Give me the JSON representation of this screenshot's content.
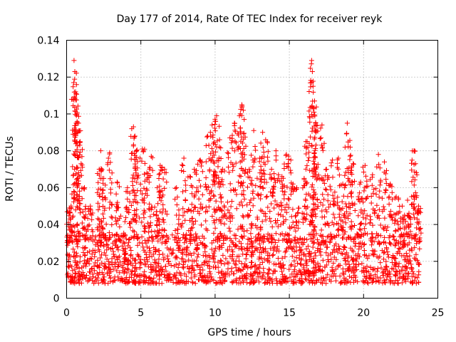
{
  "chart_data": {
    "type": "scatter",
    "title": "Day 177 of 2014, Rate Of TEC Index for receiver reyk",
    "xlabel": "GPS time / hours",
    "ylabel": "ROTI / TECUs",
    "xlim": [
      0,
      25
    ],
    "ylim": [
      0,
      0.14
    ],
    "x_ticks": [
      0,
      5,
      10,
      15,
      20,
      25
    ],
    "x_tick_labels": [
      "0",
      "5",
      "10",
      "15",
      "20",
      "25"
    ],
    "y_ticks": [
      0,
      0.02,
      0.04,
      0.06,
      0.08,
      0.1,
      0.12,
      0.14
    ],
    "y_tick_labels": [
      "0",
      "0.02",
      "0.04",
      "0.06",
      "0.08",
      "0.1",
      "0.12",
      "0.14"
    ],
    "grid": true,
    "marker": "+",
    "color": "#ff0000",
    "series": [
      {
        "name": "ROTI",
        "baseline_band": [
          0.008,
          0.035
        ],
        "spikes": [
          {
            "x": 0.1,
            "y": 0.047
          },
          {
            "x": 0.3,
            "y": 0.05
          },
          {
            "x": 0.5,
            "y": 0.129
          },
          {
            "x": 0.55,
            "y": 0.123
          },
          {
            "x": 0.6,
            "y": 0.112
          },
          {
            "x": 0.7,
            "y": 0.1
          },
          {
            "x": 0.8,
            "y": 0.095
          },
          {
            "x": 0.9,
            "y": 0.085
          },
          {
            "x": 1.2,
            "y": 0.06
          },
          {
            "x": 1.6,
            "y": 0.05
          },
          {
            "x": 2.2,
            "y": 0.07
          },
          {
            "x": 2.3,
            "y": 0.08
          },
          {
            "x": 2.5,
            "y": 0.065
          },
          {
            "x": 2.9,
            "y": 0.079
          },
          {
            "x": 3.4,
            "y": 0.063
          },
          {
            "x": 4.1,
            "y": 0.06
          },
          {
            "x": 4.5,
            "y": 0.093
          },
          {
            "x": 4.6,
            "y": 0.088
          },
          {
            "x": 4.7,
            "y": 0.08
          },
          {
            "x": 5.1,
            "y": 0.081
          },
          {
            "x": 5.4,
            "y": 0.068
          },
          {
            "x": 5.7,
            "y": 0.077
          },
          {
            "x": 6.1,
            "y": 0.06
          },
          {
            "x": 6.3,
            "y": 0.072
          },
          {
            "x": 6.6,
            "y": 0.07
          },
          {
            "x": 7.4,
            "y": 0.06
          },
          {
            "x": 7.9,
            "y": 0.076
          },
          {
            "x": 8.3,
            "y": 0.066
          },
          {
            "x": 8.6,
            "y": 0.07
          },
          {
            "x": 9.0,
            "y": 0.075
          },
          {
            "x": 9.5,
            "y": 0.088
          },
          {
            "x": 9.8,
            "y": 0.094
          },
          {
            "x": 10.0,
            "y": 0.096
          },
          {
            "x": 10.1,
            "y": 0.099
          },
          {
            "x": 10.3,
            "y": 0.086
          },
          {
            "x": 10.5,
            "y": 0.07
          },
          {
            "x": 11.0,
            "y": 0.087
          },
          {
            "x": 11.3,
            "y": 0.095
          },
          {
            "x": 11.7,
            "y": 0.1
          },
          {
            "x": 11.8,
            "y": 0.105
          },
          {
            "x": 11.9,
            "y": 0.102
          },
          {
            "x": 12.3,
            "y": 0.07
          },
          {
            "x": 12.6,
            "y": 0.091
          },
          {
            "x": 13.0,
            "y": 0.076
          },
          {
            "x": 13.2,
            "y": 0.09
          },
          {
            "x": 13.4,
            "y": 0.086
          },
          {
            "x": 13.8,
            "y": 0.07
          },
          {
            "x": 14.1,
            "y": 0.08
          },
          {
            "x": 14.5,
            "y": 0.066
          },
          {
            "x": 14.8,
            "y": 0.078
          },
          {
            "x": 15.1,
            "y": 0.075
          },
          {
            "x": 15.5,
            "y": 0.06
          },
          {
            "x": 16.0,
            "y": 0.065
          },
          {
            "x": 16.2,
            "y": 0.085
          },
          {
            "x": 16.5,
            "y": 0.129
          },
          {
            "x": 16.55,
            "y": 0.123
          },
          {
            "x": 16.6,
            "y": 0.115
          },
          {
            "x": 16.7,
            "y": 0.107
          },
          {
            "x": 16.8,
            "y": 0.094
          },
          {
            "x": 17.2,
            "y": 0.094
          },
          {
            "x": 17.5,
            "y": 0.07
          },
          {
            "x": 17.9,
            "y": 0.075
          },
          {
            "x": 18.3,
            "y": 0.076
          },
          {
            "x": 18.6,
            "y": 0.062
          },
          {
            "x": 18.9,
            "y": 0.095
          },
          {
            "x": 19.1,
            "y": 0.082
          },
          {
            "x": 19.3,
            "y": 0.073
          },
          {
            "x": 19.8,
            "y": 0.063
          },
          {
            "x": 20.1,
            "y": 0.072
          },
          {
            "x": 20.6,
            "y": 0.067
          },
          {
            "x": 21.0,
            "y": 0.078
          },
          {
            "x": 21.4,
            "y": 0.074
          },
          {
            "x": 21.8,
            "y": 0.062
          },
          {
            "x": 22.2,
            "y": 0.055
          },
          {
            "x": 22.6,
            "y": 0.05
          },
          {
            "x": 23.0,
            "y": 0.045
          },
          {
            "x": 23.4,
            "y": 0.08
          },
          {
            "x": 23.5,
            "y": 0.073
          },
          {
            "x": 23.7,
            "y": 0.05
          }
        ]
      }
    ]
  }
}
